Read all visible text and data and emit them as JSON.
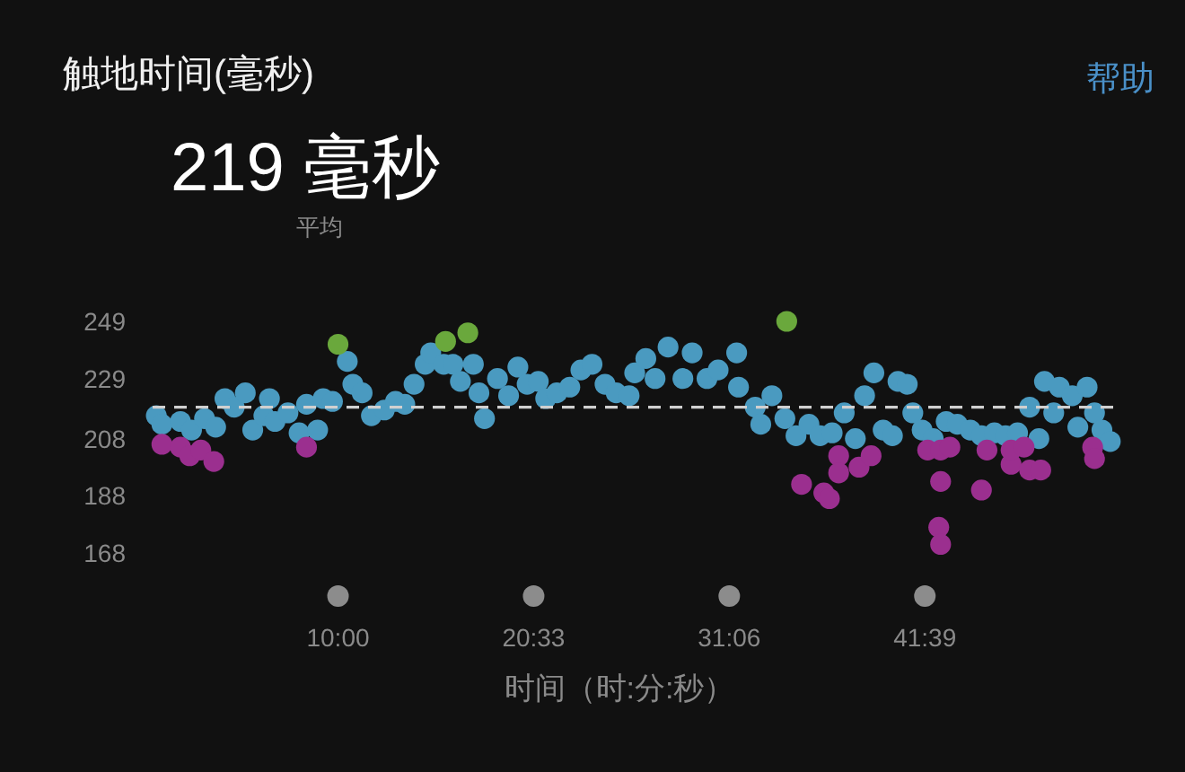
{
  "chart_data": {
    "type": "scatter",
    "title": "触地时间(毫秒)",
    "subtitle": "219 毫秒",
    "xlabel": "时间（时:分:秒）",
    "annotations": [
      "平均",
      "帮助"
    ],
    "xlim": [
      0,
      52
    ],
    "ylim": [
      168,
      249
    ],
    "xticks": [
      {
        "value": 10,
        "label": "10:00"
      },
      {
        "value": 20.55,
        "label": "20:33"
      },
      {
        "value": 31.1,
        "label": "31:06"
      },
      {
        "value": 41.65,
        "label": "41:39"
      }
    ],
    "yticks": [
      168,
      188,
      208,
      229,
      249
    ],
    "grid": false,
    "marker": "circle",
    "ref_lines": [
      {
        "axis": "y",
        "value": 219,
        "label": null,
        "color": "#d0d0d0",
        "line_style": "dashed"
      }
    ],
    "series": [
      {
        "color": "#4a9ac0",
        "x": [
          0.2,
          0.5,
          1.5,
          2.1,
          2.8,
          3.4,
          3.9,
          4.4,
          5.0,
          5.4,
          6.0,
          6.3,
          6.6,
          7.3,
          7.9,
          8.3,
          8.9,
          9.2,
          9.7,
          10.5,
          10.8,
          11.3,
          11.8,
          12.5,
          13.1,
          13.6,
          14.1,
          14.7,
          15.0,
          15.7,
          16.2,
          16.6,
          17.3,
          17.6,
          17.9,
          18.6,
          19.2,
          19.7,
          20.2,
          20.8,
          21.2,
          21.8,
          22.5,
          23.1,
          23.7,
          24.4,
          25.0,
          25.7,
          26.0,
          26.6,
          27.1,
          27.8,
          28.6,
          29.1,
          29.9,
          30.5,
          31.5,
          31.6,
          32.5,
          32.8,
          33.4,
          34.1,
          34.7,
          35.4,
          36.0,
          36.65,
          37.3,
          37.9,
          38.4,
          38.9,
          39.4,
          39.9,
          40.2,
          40.7,
          41.0,
          41.5,
          42.1,
          42.8,
          43.4,
          44.1,
          44.7,
          45.4,
          46.0,
          46.65,
          47.3,
          47.8,
          48.1,
          48.6,
          48.9,
          49.6,
          49.9,
          50.4,
          50.8,
          51.2,
          51.65
        ],
        "values": [
          216,
          213,
          214,
          211,
          215,
          212,
          222,
          219,
          224,
          211,
          216,
          222,
          214,
          217,
          210,
          220,
          211,
          222,
          221,
          235,
          227,
          224,
          216,
          218,
          221,
          220,
          227,
          234,
          238,
          234,
          234,
          228,
          234,
          224,
          215,
          229,
          223,
          233,
          227,
          228,
          222,
          224,
          226,
          232,
          234,
          227,
          224,
          223,
          231,
          236,
          229,
          240,
          229,
          238,
          229,
          232,
          238,
          226,
          219,
          213,
          223,
          215,
          209,
          213,
          209,
          210,
          217,
          208,
          223,
          231,
          211,
          209,
          228,
          227,
          217,
          211,
          208,
          214,
          213,
          211,
          209,
          210,
          209,
          210,
          219,
          208,
          228,
          217,
          226,
          223,
          212,
          226,
          217,
          211,
          207
        ]
      },
      {
        "color": "#9b2f8f",
        "x": [
          0.5,
          1.5,
          2.0,
          2.6,
          3.3,
          8.3,
          35.0,
          36.2,
          36.5,
          37.0,
          37.0,
          38.1,
          38.75,
          41.8,
          42.5,
          43.0,
          42.5,
          42.4,
          42.5,
          44.7,
          45.0,
          46.3,
          46.3,
          47.0,
          47.3,
          47.9,
          50.7,
          50.8
        ],
        "values": [
          206,
          205,
          202,
          204,
          200,
          205,
          192,
          189,
          187,
          202,
          196,
          198,
          202,
          204,
          204,
          205,
          193,
          177,
          171,
          190,
          204,
          199,
          204,
          205,
          197,
          197,
          205,
          201
        ]
      },
      {
        "color": "#6aa83c",
        "x": [
          10.0,
          15.8,
          17.0,
          34.2
        ],
        "values": [
          241,
          242,
          245,
          249
        ]
      }
    ]
  }
}
